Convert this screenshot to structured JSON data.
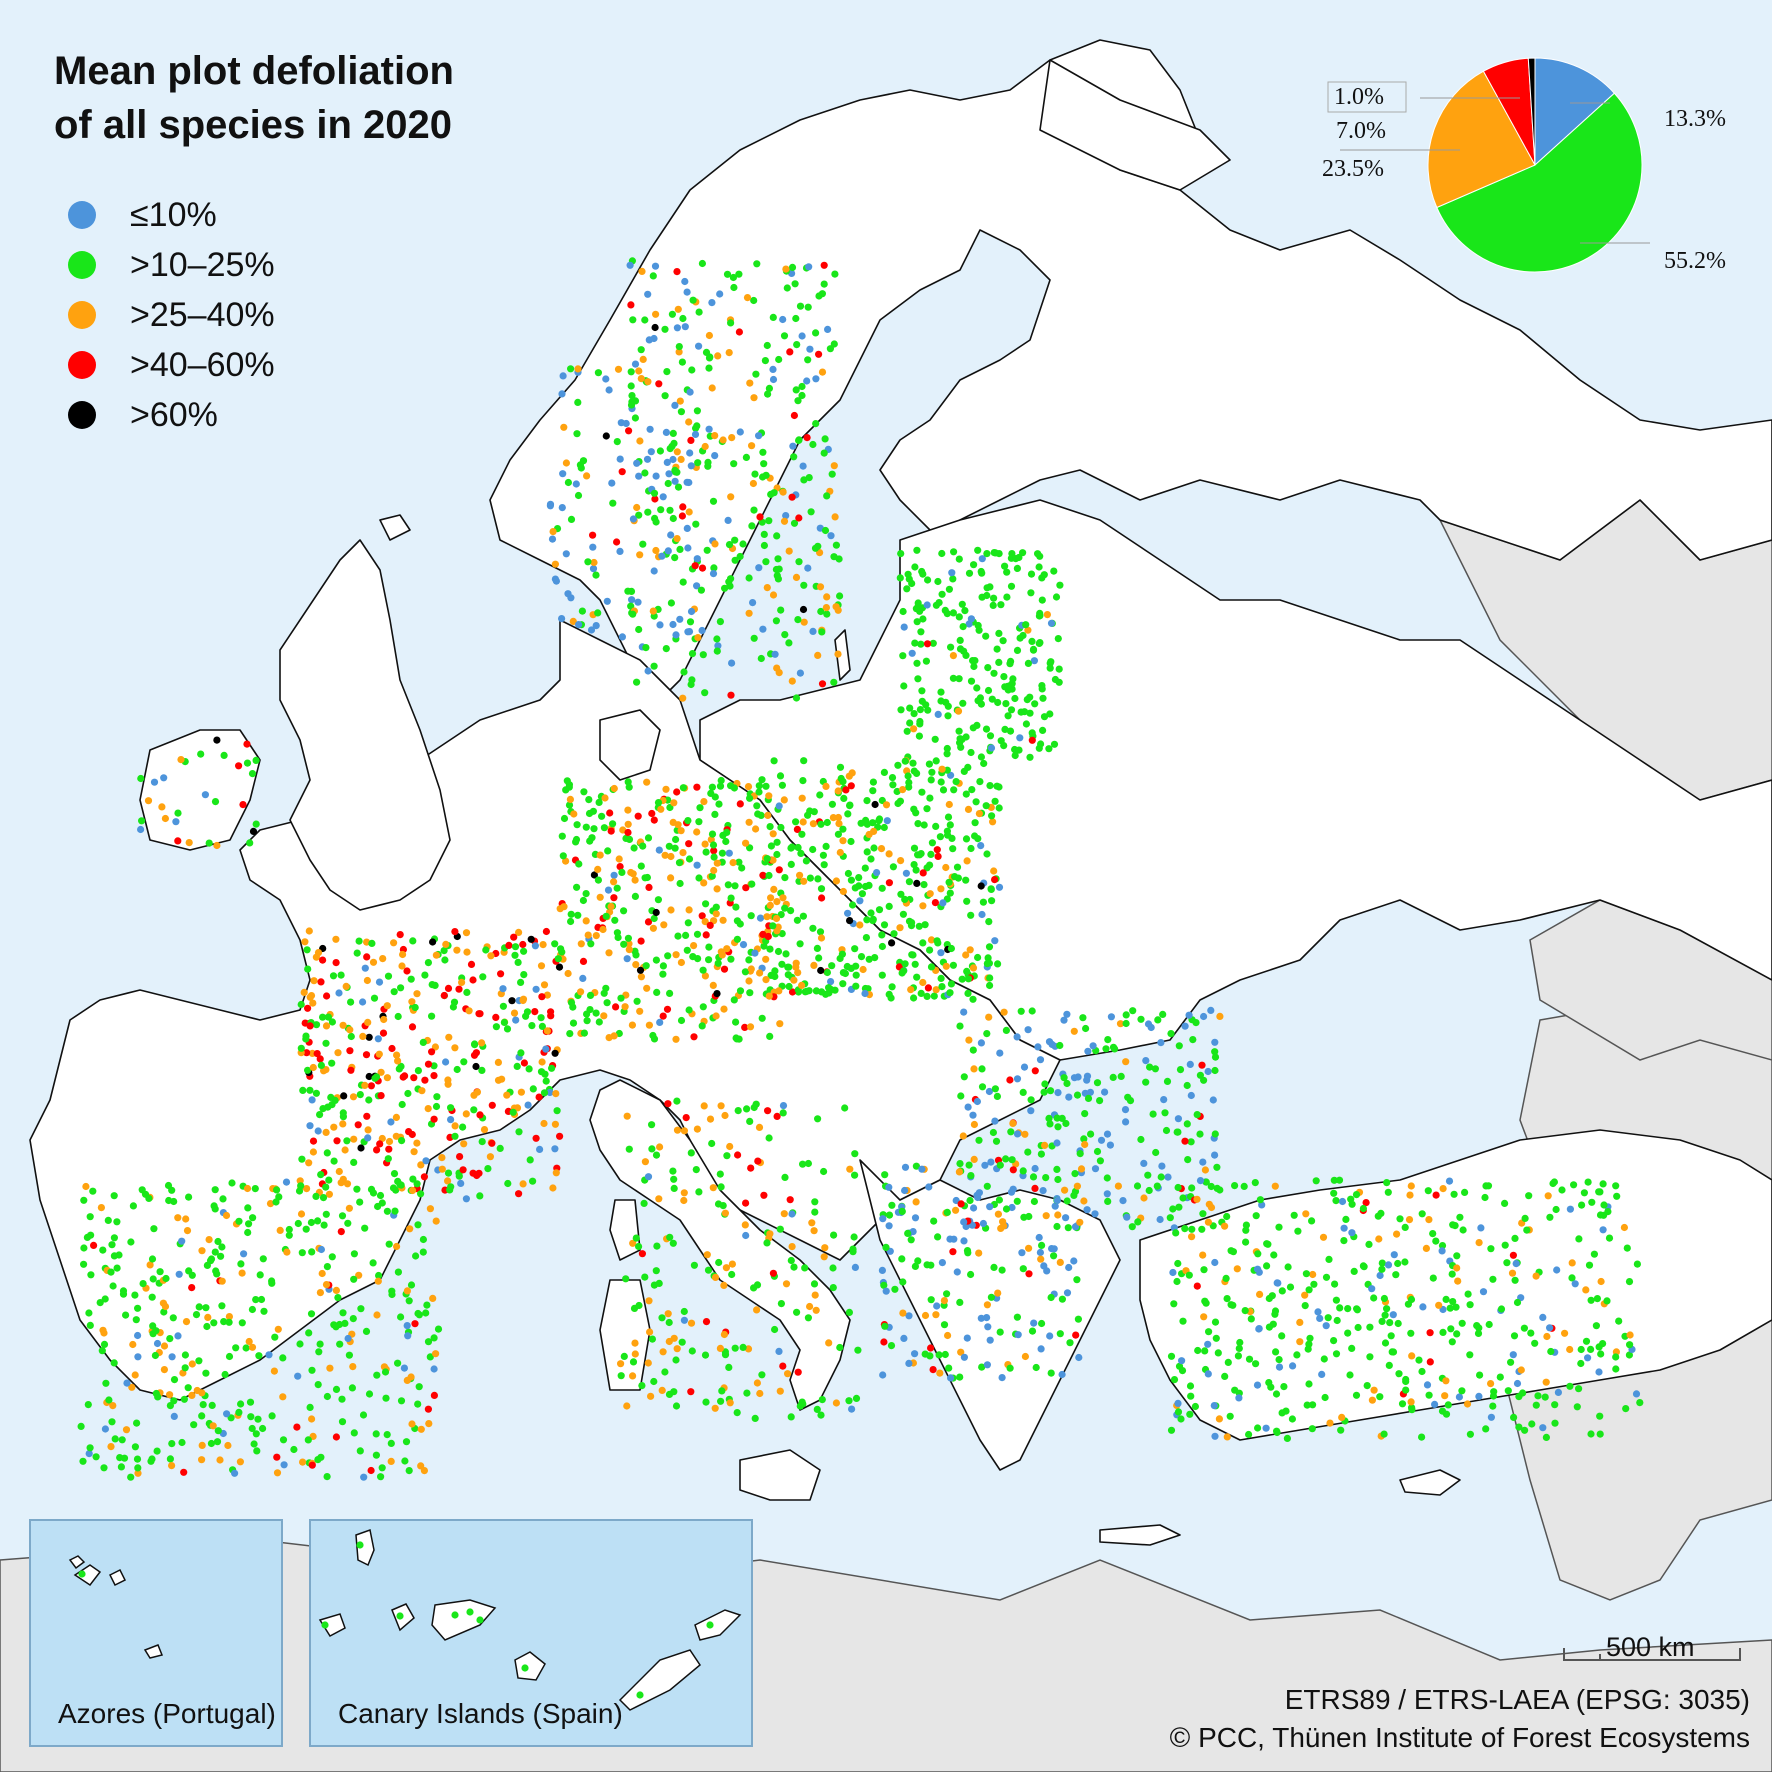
{
  "title_line1": "Mean plot defoliation",
  "title_line2": "of all species in 2020",
  "colors": {
    "sea": "#e3f1fb",
    "land": "#ffffff",
    "non_covered_land": "#e6e6e6",
    "inset_bg": "#bde0f5",
    "class_1": "#4d94db",
    "class_2": "#19e619",
    "class_3": "#ffa20f",
    "class_4": "#ff0000",
    "class_5": "#000000"
  },
  "legend": [
    {
      "label": "≤10%",
      "color": "#4d94db"
    },
    {
      "label": ">10–25%",
      "color": "#19e619"
    },
    {
      "label": ">25–40%",
      "color": "#ffa20f"
    },
    {
      "label": ">40–60%",
      "color": ">40–60% color",
      "color_hex": "#ff0000"
    },
    {
      "label": ">60%",
      "color": "#000000"
    }
  ],
  "chart_data": {
    "type": "pie",
    "title": "",
    "categories": [
      "≤10%",
      ">10–25%",
      ">25–40%",
      ">40–60%",
      ">60%"
    ],
    "values": [
      13.3,
      55.2,
      23.5,
      7.0,
      1.0
    ],
    "labels": [
      "13.3%",
      "55.2%",
      "23.5%",
      "7.0%",
      "1.0%"
    ],
    "colors": [
      "#4d94db",
      "#19e619",
      "#ffa20f",
      "#ff0000",
      "#000000"
    ]
  },
  "insets": [
    {
      "label": "Azores (Portugal)"
    },
    {
      "label": "Canary Islands (Spain)"
    }
  ],
  "scale_bar": {
    "label": "500 km"
  },
  "projection": "ETRS89 / ETRS-LAEA (EPSG: 3035)",
  "copyright": "© PCC, Thünen Institute of Forest Ecosystems"
}
